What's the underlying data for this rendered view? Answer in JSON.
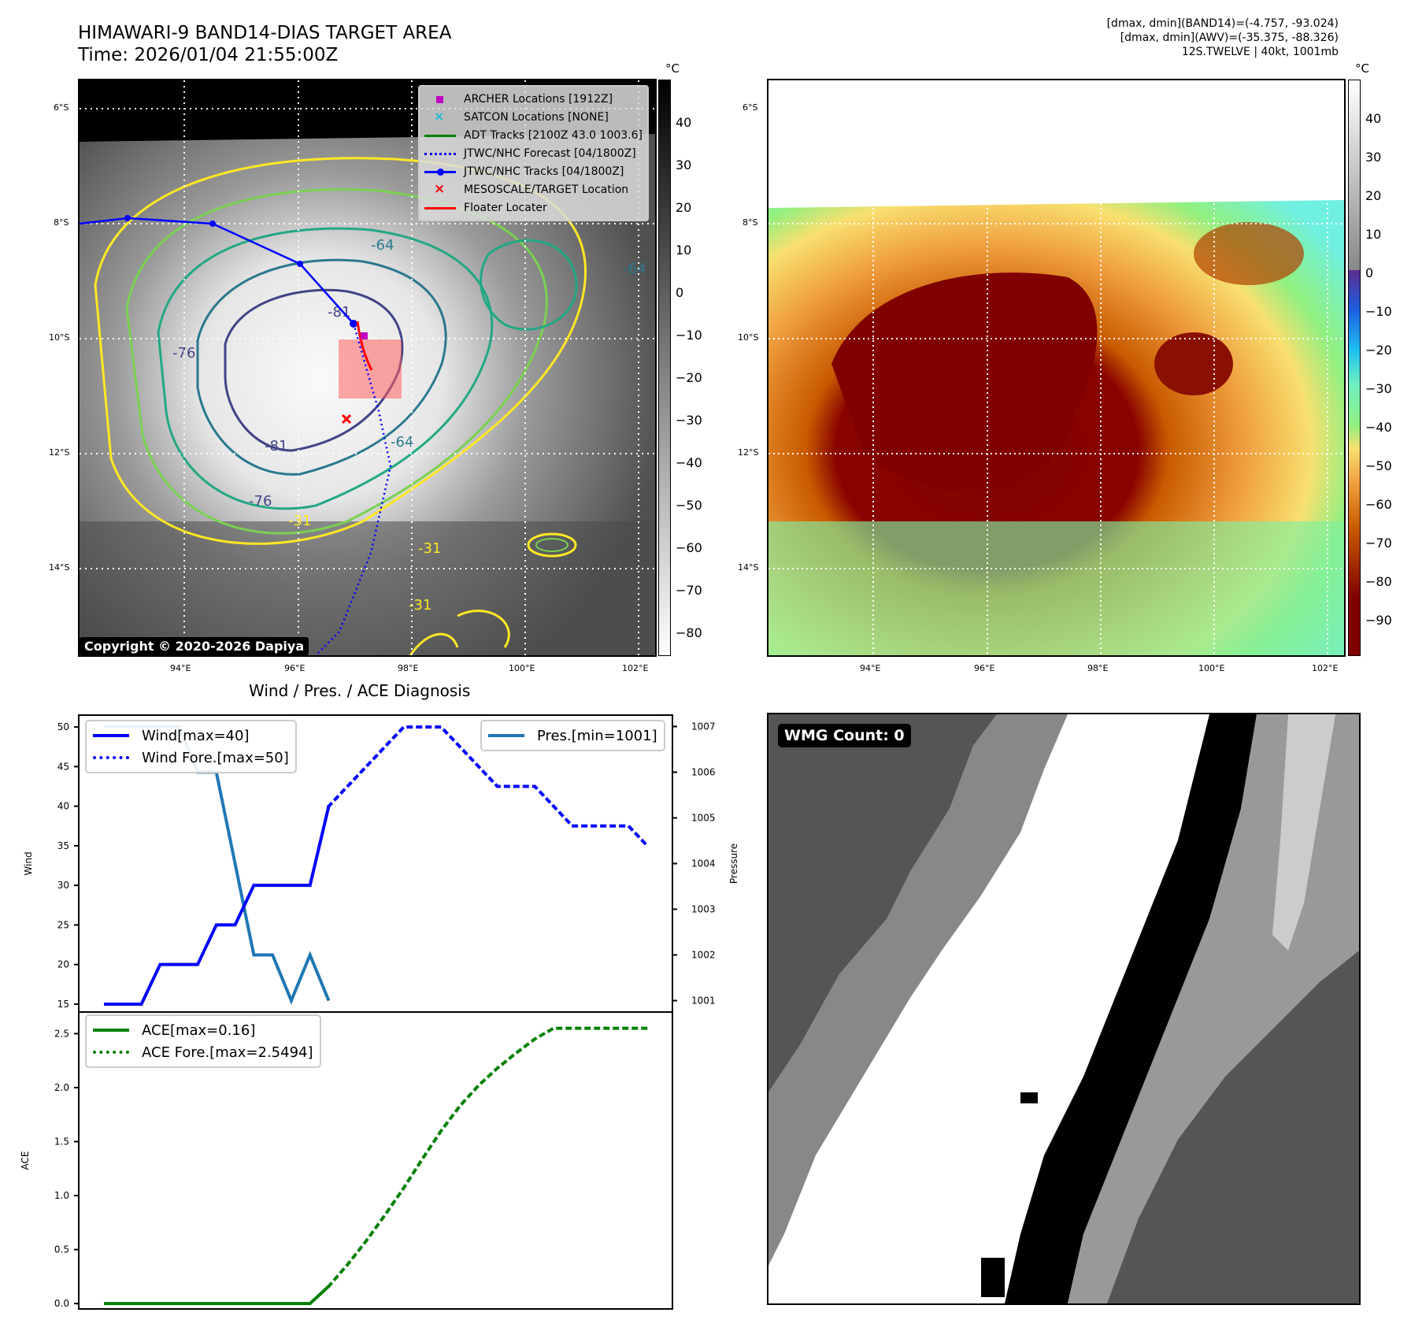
{
  "header": {
    "title_line1": "HIMAWARI-9 BAND14-DIAS TARGET AREA",
    "title_line2": "Time: 2026/01/04 21:55:00Z",
    "info_line1": "[dmax, dmin](BAND14)=(-4.757, -93.024)",
    "info_line2": "[dmax, dmin](AWV)=(-35.375, -88.326)",
    "info_line3": "12S.TWELVE | 40kt, 1001mb"
  },
  "map_axes": {
    "lat_ticks": [
      "6°S",
      "8°S",
      "10°S",
      "12°S",
      "14°S"
    ],
    "lon_ticks": [
      "94°E",
      "96°E",
      "98°E",
      "100°E",
      "102°E"
    ]
  },
  "left_map": {
    "copyright": "Copyright © 2020-2026 Dapiya",
    "colorbar_unit": "°C",
    "colorbar_ticks": [
      "40",
      "30",
      "20",
      "10",
      "0",
      "−10",
      "−20",
      "−30",
      "−40",
      "−50",
      "−60",
      "−70",
      "−80"
    ],
    "contour_labels": [
      "-81",
      "-76",
      "-64",
      "-64",
      "-64",
      "-31",
      "-31",
      "-31",
      "-76",
      "-81"
    ],
    "legend": [
      {
        "label": "ARCHER Locations [1912Z]",
        "icon": "magenta-square-icon"
      },
      {
        "label": "SATCON Locations [NONE]",
        "icon": "cyan-x-icon"
      },
      {
        "label": "ADT Tracks [2100Z 43.0 1003.6]",
        "icon": "green-line-icon"
      },
      {
        "label": "JTWC/NHC Forecast [04/1800Z]",
        "icon": "blue-dotted-line-icon"
      },
      {
        "label": "JTWC/NHC Tracks [04/1800Z]",
        "icon": "blue-line-dot-icon"
      },
      {
        "label": "MESOSCALE/TARGET Location",
        "icon": "red-x-icon"
      },
      {
        "label": "Floater Locater",
        "icon": "red-line-icon"
      }
    ]
  },
  "right_map": {
    "colorbar_unit": "°C",
    "colorbar_ticks": [
      "40",
      "30",
      "20",
      "10",
      "0",
      "−10",
      "−20",
      "−30",
      "−40",
      "−50",
      "−60",
      "−70",
      "−80",
      "−90"
    ]
  },
  "wmg_panel": {
    "count_label": "WMG Count: 0"
  },
  "colors": {
    "wind": "#0000ff",
    "pressure": "#1f77b4",
    "ace": "#008000",
    "track": "#0000ff",
    "floater": "#ff0000",
    "archer": "#c000c0"
  },
  "chart_data": [
    {
      "type": "line",
      "title": "Wind / Pres. / ACE Diagnosis",
      "ylabel": "Wind",
      "y2label": "Pressure",
      "ylim": [
        14,
        51.5
      ],
      "y2lim": [
        1000.75,
        1007.25
      ],
      "yticks": [
        "15",
        "20",
        "25",
        "30",
        "35",
        "40",
        "45",
        "50"
      ],
      "y2ticks": [
        "1001",
        "1002",
        "1003",
        "1004",
        "1005",
        "1006",
        "1007"
      ],
      "x": [
        0,
        1,
        2,
        3,
        4,
        5,
        6,
        7,
        8,
        9,
        10,
        11,
        12,
        13,
        14,
        15,
        16,
        17,
        18,
        19,
        20,
        21,
        22,
        23,
        24,
        25,
        26,
        27,
        28,
        29
      ],
      "series": [
        {
          "name": "Wind[max=40]",
          "axis": "left",
          "style": "solid",
          "x": [
            0,
            1,
            2,
            3,
            4,
            5,
            6,
            7,
            8,
            9,
            10,
            11,
            12
          ],
          "values": [
            15,
            15,
            15,
            20,
            20,
            20,
            25,
            25,
            30,
            30,
            30,
            30,
            40
          ]
        },
        {
          "name": "Wind Fore.[max=50]",
          "axis": "left",
          "style": "dotted",
          "x": [
            12,
            13,
            14,
            15,
            16,
            17,
            18,
            19,
            20,
            21,
            22,
            23,
            24,
            25,
            26,
            27,
            28,
            29
          ],
          "values": [
            40,
            42.5,
            45,
            47.5,
            50,
            50,
            50,
            47.5,
            45,
            42.5,
            42.5,
            42.5,
            40,
            37.5,
            37.5,
            37.5,
            37.5,
            35
          ]
        },
        {
          "name": "Pres.[min=1001]",
          "axis": "right",
          "style": "solid",
          "x": [
            0,
            1,
            2,
            3,
            4,
            5,
            6,
            7,
            8,
            9,
            10,
            11,
            12
          ],
          "values": [
            1007,
            1007,
            1007,
            1007,
            1007,
            1006,
            1006,
            1004,
            1002,
            1002,
            1001,
            1002,
            1001
          ]
        }
      ]
    },
    {
      "type": "line",
      "ylabel": "ACE",
      "ylim": [
        -0.05,
        2.7
      ],
      "yticks": [
        "0.0",
        "0.5",
        "1.0",
        "1.5",
        "2.0",
        "2.5"
      ],
      "series": [
        {
          "name": "ACE[max=0.16]",
          "style": "solid",
          "x": [
            0,
            1,
            2,
            3,
            4,
            5,
            6,
            7,
            8,
            9,
            10,
            11,
            12
          ],
          "values": [
            0,
            0,
            0,
            0,
            0,
            0,
            0,
            0,
            0,
            0,
            0,
            0,
            0.16
          ]
        },
        {
          "name": "ACE Fore.[max=2.5494]",
          "style": "dotted",
          "x": [
            12,
            13,
            14,
            15,
            16,
            17,
            18,
            19,
            20,
            21,
            22,
            23,
            24,
            25,
            26,
            27,
            28,
            29
          ],
          "values": [
            0.16,
            0.36,
            0.58,
            0.82,
            1.07,
            1.34,
            1.6,
            1.83,
            2.02,
            2.18,
            2.32,
            2.45,
            2.55,
            2.55,
            2.55,
            2.55,
            2.55,
            2.55
          ]
        }
      ]
    }
  ]
}
